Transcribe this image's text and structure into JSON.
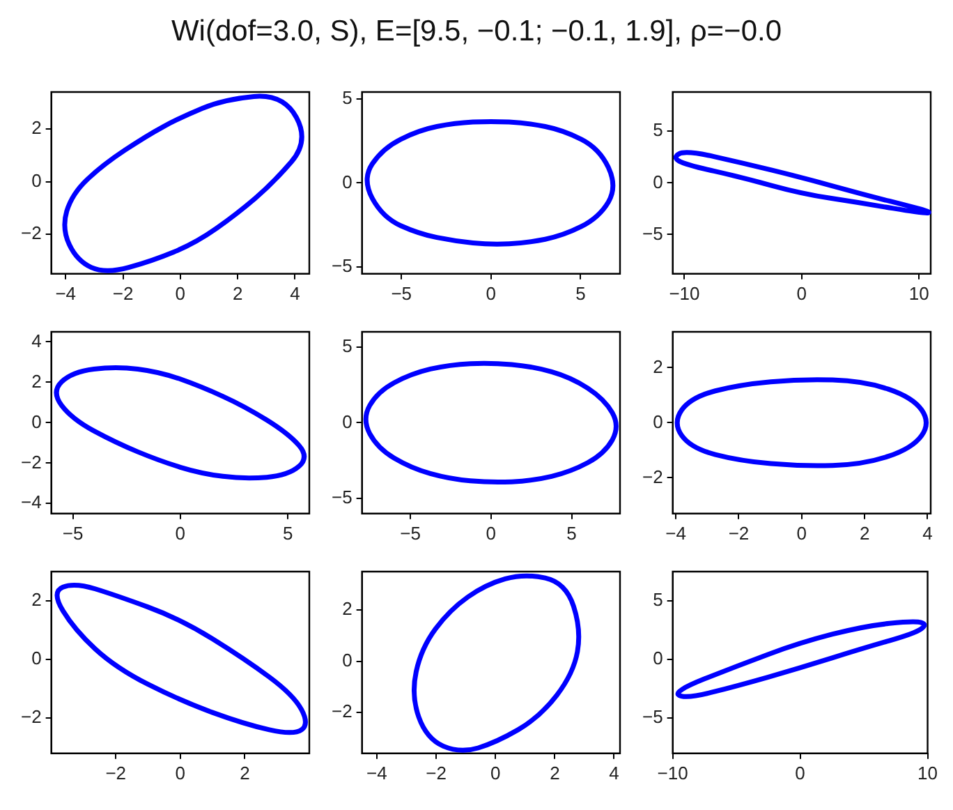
{
  "chart_data": [
    {
      "type": "line",
      "title": "Wi(dof=3.0, S), E=[9.5, −0.1; −0.1, 1.9], ρ=−0.0",
      "xlim": [
        -4.5,
        4.5
      ],
      "ylim": [
        -3.5,
        3.4
      ],
      "xticks": [
        -4,
        -2,
        0,
        2,
        4
      ],
      "yticks": [
        -2,
        0,
        2
      ]
    },
    {
      "type": "line",
      "xlim": [
        -7.2,
        7.2
      ],
      "ylim": [
        -5.4,
        5.4
      ],
      "xticks": [
        -5,
        0,
        5
      ],
      "yticks": [
        -5,
        0,
        5
      ]
    },
    {
      "type": "line",
      "xlim": [
        -11,
        11
      ],
      "ylim": [
        -8.8,
        8.8
      ],
      "xticks": [
        -10,
        0,
        10
      ],
      "yticks": [
        -5,
        0,
        5
      ]
    },
    {
      "type": "line",
      "xlim": [
        -6,
        6
      ],
      "ylim": [
        -4.5,
        4.5
      ],
      "xticks": [
        -5,
        0,
        5
      ],
      "yticks": [
        -4,
        -2,
        0,
        2,
        4
      ]
    },
    {
      "type": "line",
      "xlim": [
        -8,
        8
      ],
      "ylim": [
        -6,
        6
      ],
      "xticks": [
        -5,
        0,
        5
      ],
      "yticks": [
        -5,
        0,
        5
      ]
    },
    {
      "type": "line",
      "xlim": [
        -4.1,
        4.1
      ],
      "ylim": [
        -3.3,
        3.3
      ],
      "xticks": [
        -4,
        -2,
        0,
        2,
        4
      ],
      "yticks": [
        -2,
        0,
        2
      ]
    },
    {
      "type": "line",
      "xlim": [
        -4,
        4
      ],
      "ylim": [
        -3.2,
        3
      ],
      "xticks": [
        -2,
        0,
        2
      ],
      "yticks": [
        -2,
        0,
        2
      ]
    },
    {
      "type": "line",
      "xlim": [
        -4.5,
        4.2
      ],
      "ylim": [
        -3.6,
        3.5
      ],
      "xticks": [
        -4,
        -2,
        0,
        2,
        4
      ],
      "yticks": [
        -2,
        0,
        2
      ]
    },
    {
      "type": "line",
      "xlim": [
        -10,
        10
      ],
      "ylim": [
        -8,
        7.5
      ],
      "xticks": [
        -10,
        0,
        10
      ],
      "yticks": [
        -5,
        0,
        5
      ]
    }
  ]
}
